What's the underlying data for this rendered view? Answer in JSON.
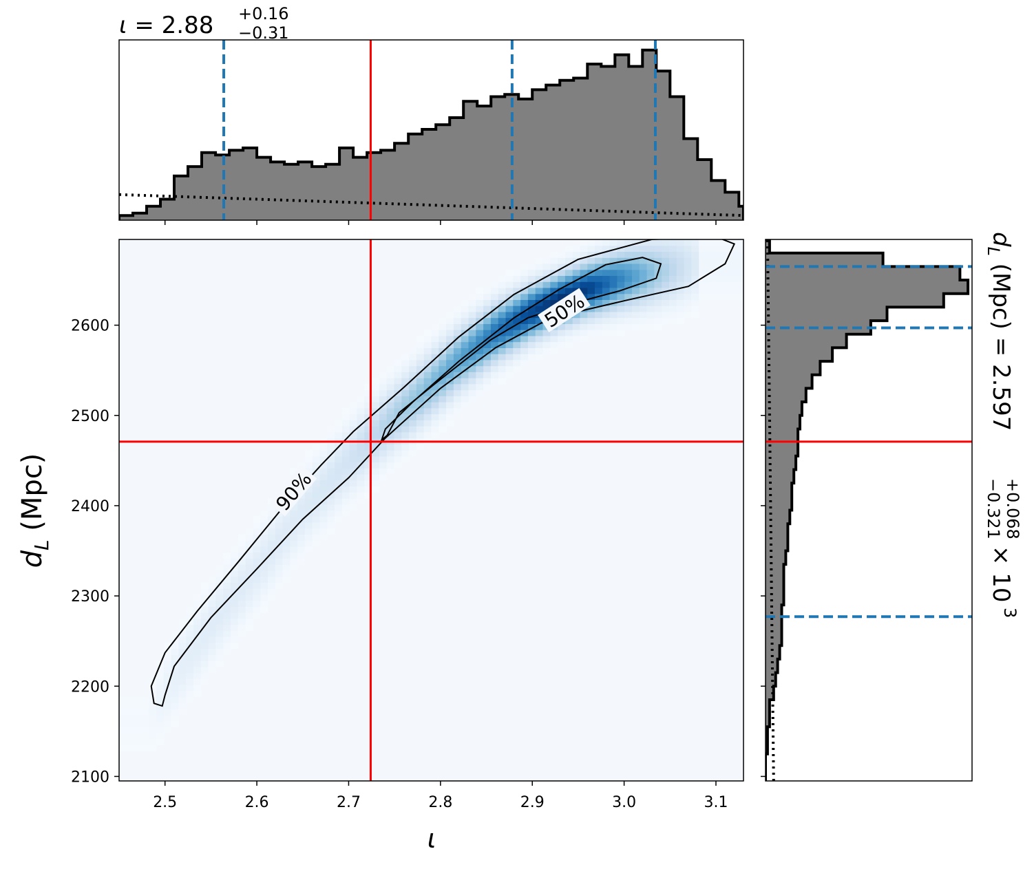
{
  "titles": {
    "top_value": "2.88",
    "top_plus": "+0.16",
    "top_minus": "−0.31",
    "right_value": "2.597",
    "right_plus": "+0.068",
    "right_minus": "−0.321",
    "right_suffix": "× 10",
    "right_exp": "3"
  },
  "chart_data": {
    "type": "heatmap",
    "xlabel": "ι",
    "ylabel": "d_L (Mpc)",
    "xlim": [
      2.45,
      3.13
    ],
    "ylim": [
      2095,
      2695
    ],
    "xticks": [
      2.5,
      2.6,
      2.7,
      2.8,
      2.9,
      3.0,
      3.1
    ],
    "xtick_labels": [
      "2.5",
      "2.6",
      "2.7",
      "2.8",
      "2.9",
      "3.0",
      "3.1"
    ],
    "yticks": [
      2100,
      2200,
      2300,
      2400,
      2500,
      2600
    ],
    "ytick_labels": [
      "2100",
      "2200",
      "2300",
      "2400",
      "2500",
      "2600"
    ],
    "truth": {
      "iota": 2.724,
      "dL": 2471
    },
    "contour_labels": [
      "50%",
      "90%"
    ],
    "contours": {
      "p90": [
        [
          2.497,
          2178
        ],
        [
          2.488,
          2181
        ],
        [
          2.485,
          2200
        ],
        [
          2.5,
          2237
        ],
        [
          2.535,
          2283
        ],
        [
          2.58,
          2338
        ],
        [
          2.63,
          2400
        ],
        [
          2.67,
          2445
        ],
        [
          2.705,
          2482
        ],
        [
          2.76,
          2531
        ],
        [
          2.82,
          2587
        ],
        [
          2.88,
          2634
        ],
        [
          2.95,
          2673
        ],
        [
          3.03,
          2695
        ],
        [
          3.1,
          2698
        ],
        [
          3.12,
          2690
        ],
        [
          3.11,
          2668
        ],
        [
          3.07,
          2643
        ],
        [
          3.0,
          2627
        ],
        [
          2.92,
          2608
        ],
        [
          2.86,
          2575
        ],
        [
          2.8,
          2530
        ],
        [
          2.74,
          2475
        ],
        [
          2.7,
          2431
        ],
        [
          2.65,
          2385
        ],
        [
          2.6,
          2330
        ],
        [
          2.55,
          2276
        ],
        [
          2.51,
          2222
        ],
        [
          2.5,
          2190
        ],
        [
          2.497,
          2178
        ]
      ],
      "p50": [
        [
          2.736,
          2473
        ],
        [
          2.74,
          2485
        ],
        [
          2.77,
          2515
        ],
        [
          2.82,
          2560
        ],
        [
          2.88,
          2608
        ],
        [
          2.93,
          2640
        ],
        [
          2.98,
          2667
        ],
        [
          3.02,
          2675
        ],
        [
          3.04,
          2668
        ],
        [
          3.035,
          2652
        ],
        [
          2.995,
          2638
        ],
        [
          2.94,
          2623
        ],
        [
          2.895,
          2608
        ],
        [
          2.855,
          2584
        ],
        [
          2.8,
          2540
        ],
        [
          2.755,
          2503
        ],
        [
          2.742,
          2478
        ],
        [
          2.736,
          2473
        ]
      ]
    },
    "top_hist": {
      "xlabel": "ι",
      "bin_edges": [
        2.45,
        2.465,
        2.48,
        2.495,
        2.51,
        2.525,
        2.54,
        2.555,
        2.57,
        2.585,
        2.6,
        2.615,
        2.63,
        2.645,
        2.66,
        2.675,
        2.69,
        2.705,
        2.72,
        2.735,
        2.75,
        2.765,
        2.78,
        2.795,
        2.81,
        2.825,
        2.84,
        2.855,
        2.87,
        2.885,
        2.9,
        2.915,
        2.93,
        2.945,
        2.96,
        2.975,
        2.99,
        3.005,
        3.02,
        3.035,
        3.05,
        3.065,
        3.08,
        3.095,
        3.11,
        3.125,
        3.13
      ],
      "counts": [
        2,
        3,
        6,
        9,
        19,
        23,
        29,
        28,
        30,
        31,
        27,
        25,
        24,
        25,
        23,
        24,
        31,
        27,
        29,
        30,
        33,
        37,
        39,
        41,
        44,
        51,
        49,
        53,
        54,
        52,
        56,
        58,
        60,
        61,
        67,
        66,
        71,
        66,
        73,
        64,
        53,
        35,
        26,
        17,
        12,
        6
      ],
      "quantiles": [
        2.564,
        2.878,
        3.034
      ],
      "prior": [
        [
          2.45,
          11
        ],
        [
          2.6,
          9
        ],
        [
          2.75,
          7
        ],
        [
          2.9,
          5
        ],
        [
          3.05,
          3
        ],
        [
          3.13,
          2
        ]
      ]
    },
    "right_hist": {
      "xlabel": "d_L (Mpc)",
      "bin_edges": [
        2095,
        2110,
        2125,
        2140,
        2155,
        2170,
        2185,
        2200,
        2215,
        2230,
        2245,
        2260,
        2275,
        2290,
        2305,
        2320,
        2335,
        2350,
        2365,
        2380,
        2395,
        2410,
        2425,
        2440,
        2455,
        2470,
        2485,
        2500,
        2515,
        2530,
        2545,
        2560,
        2575,
        2590,
        2605,
        2620,
        2635,
        2650,
        2665,
        2680,
        2695
      ],
      "counts": [
        0,
        0,
        1,
        1,
        2,
        2,
        4,
        5,
        6,
        7,
        8,
        8,
        8,
        9,
        9,
        9,
        10,
        11,
        11,
        12,
        13,
        13,
        14,
        15,
        16,
        16,
        17,
        18,
        20,
        23,
        27,
        33,
        40,
        52,
        60,
        88,
        100,
        96,
        58,
        2
      ],
      "quantiles": [
        2277,
        2597,
        2665
      ],
      "prior": [
        [
          2095,
          4
        ],
        [
          2300,
          3
        ],
        [
          2500,
          2
        ],
        [
          2695,
          1
        ]
      ]
    }
  }
}
